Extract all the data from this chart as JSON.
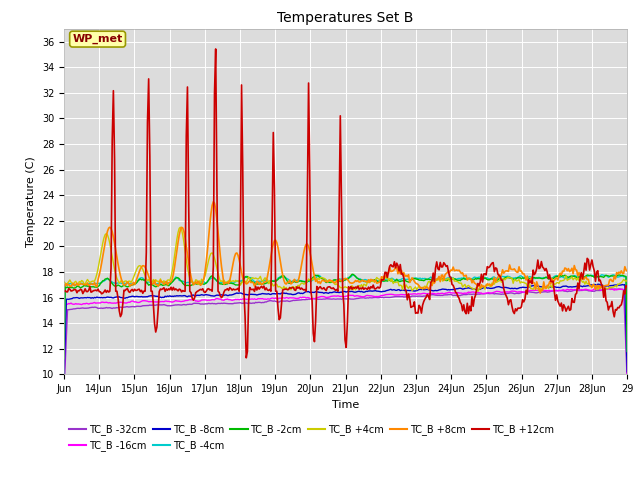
{
  "title": "Temperatures Set B",
  "xlabel": "Time",
  "ylabel": "Temperature (C)",
  "ylim": [
    10,
    37
  ],
  "yticks": [
    10,
    12,
    14,
    16,
    18,
    20,
    22,
    24,
    26,
    28,
    30,
    32,
    34,
    36
  ],
  "fig_bg": "#ffffff",
  "plot_bg": "#dcdcdc",
  "series": {
    "TC_B -32cm": {
      "color": "#9933cc",
      "lw": 1.0
    },
    "TC_B -16cm": {
      "color": "#ff00ff",
      "lw": 1.0
    },
    "TC_B -8cm": {
      "color": "#0000cc",
      "lw": 1.0
    },
    "TC_B -4cm": {
      "color": "#00cccc",
      "lw": 1.0
    },
    "TC_B -2cm": {
      "color": "#00bb00",
      "lw": 1.0
    },
    "TC_B +4cm": {
      "color": "#cccc00",
      "lw": 1.0
    },
    "TC_B +8cm": {
      "color": "#ff8800",
      "lw": 1.2
    },
    "TC_B +12cm": {
      "color": "#cc0000",
      "lw": 1.2
    }
  },
  "wp_met": {
    "text": "WP_met",
    "facecolor": "#ffffaa",
    "edgecolor": "#999900",
    "textcolor": "#880000",
    "fontsize": 8,
    "fontweight": "bold"
  },
  "n_points": 480,
  "x_start": 13.0,
  "x_end": 29.0,
  "xtick_positions": [
    13,
    14,
    15,
    16,
    17,
    18,
    19,
    20,
    21,
    22,
    23,
    24,
    25,
    26,
    27,
    28,
    29
  ],
  "xtick_labels": [
    "Jun",
    "14Jun",
    "15Jun",
    "16Jun",
    "17Jun",
    "18Jun",
    "19Jun",
    "20Jun",
    "21Jun",
    "22Jun",
    "23Jun",
    "24Jun",
    "25Jun",
    "26Jun",
    "27Jun",
    "28Jun",
    "29"
  ],
  "tick_fontsize": 7,
  "title_fontsize": 10,
  "label_fontsize": 8,
  "legend_fontsize": 7
}
